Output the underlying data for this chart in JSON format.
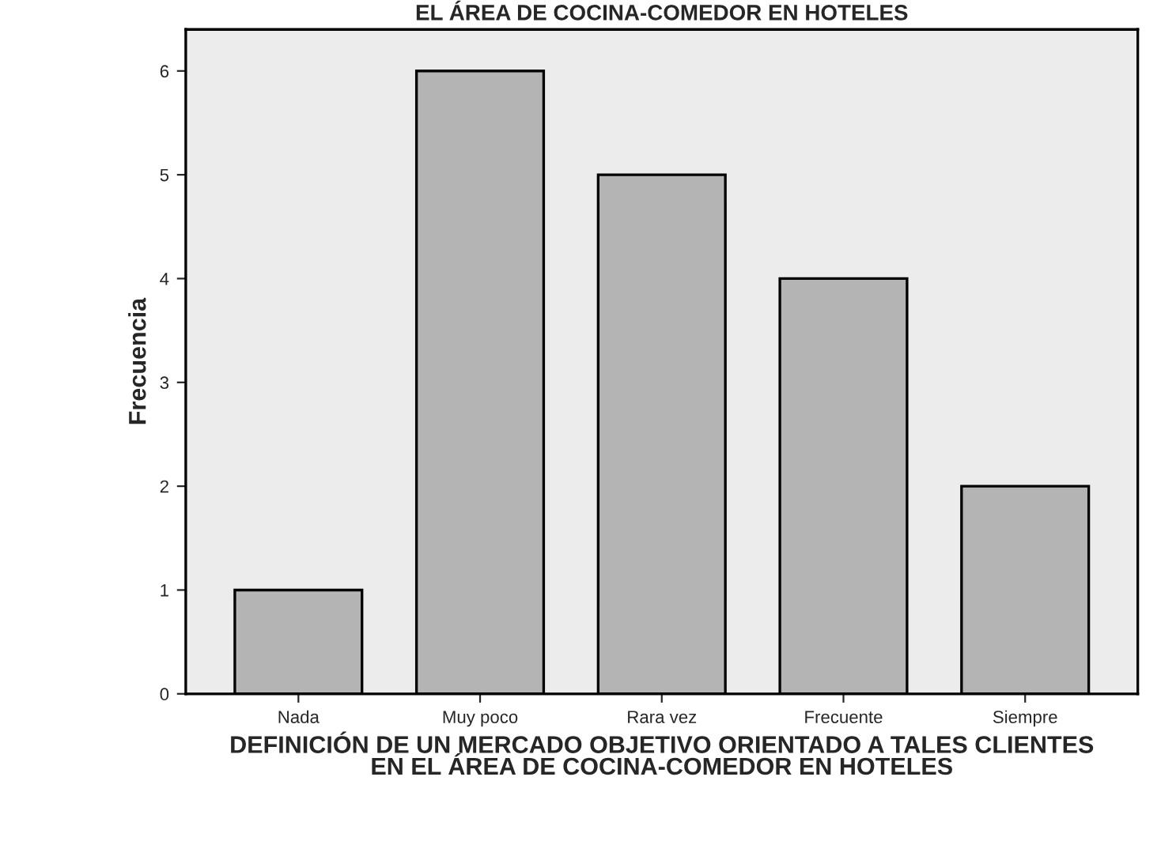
{
  "chart_data": {
    "type": "bar",
    "title": "EL ÁREA DE COCINA-COMEDOR EN HOTELES",
    "xlabel": "DEFINICIÓN DE UN MERCADO OBJETIVO ORIENTADO A TALES CLIENTES\nEN EL ÁREA DE COCINA-COMEDOR EN HOTELES",
    "ylabel": "Frecuencia",
    "categories": [
      "Nada",
      "Muy poco",
      "Rara vez",
      "Frecuente",
      "Siempre"
    ],
    "values": [
      1,
      6,
      5,
      4,
      2
    ],
    "color": "#b4b4b4",
    "ylim": [
      0,
      6.4
    ],
    "yticks": [
      0,
      1,
      2,
      3,
      4,
      5,
      6
    ],
    "grid": false
  }
}
